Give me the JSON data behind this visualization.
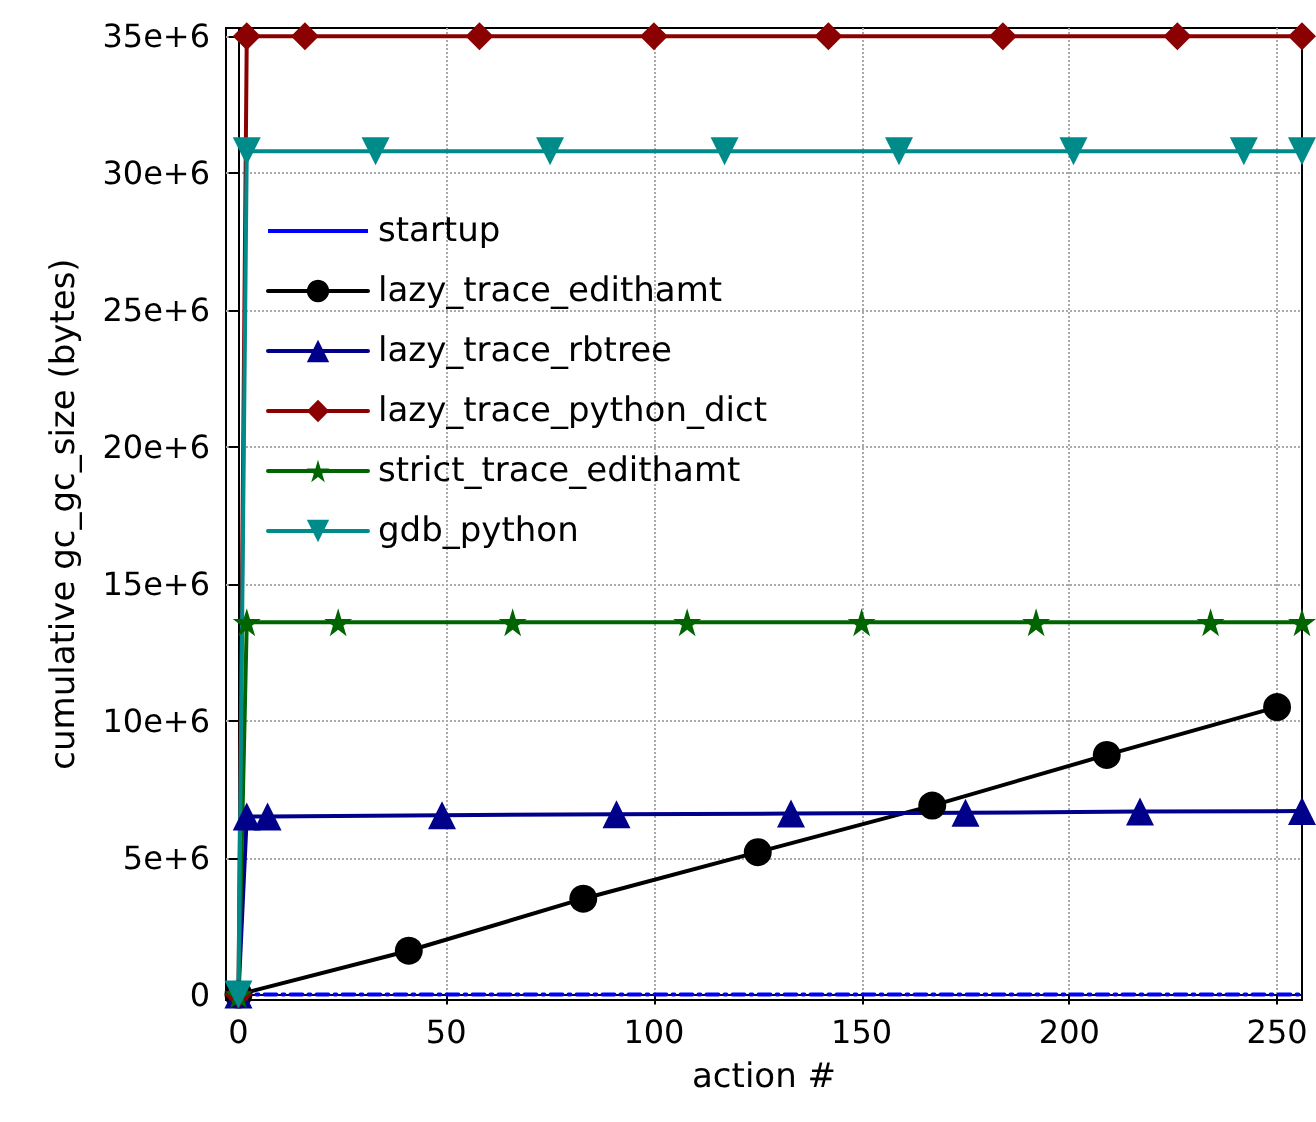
{
  "chart_data": {
    "type": "line",
    "xlabel": "action #",
    "ylabel": "cumulative gc_gc_size (bytes)",
    "xlim": [
      -3,
      256
    ],
    "ylim": [
      -200000,
      35300000
    ],
    "xticks": [
      0,
      50,
      100,
      150,
      200,
      250
    ],
    "yticks": [
      {
        "value": 0,
        "label": "0"
      },
      {
        "value": 5000000,
        "label": "5e+6"
      },
      {
        "value": 10000000,
        "label": "10e+6"
      },
      {
        "value": 15000000,
        "label": "15e+6"
      },
      {
        "value": 20000000,
        "label": "20e+6"
      },
      {
        "value": 25000000,
        "label": "25e+6"
      },
      {
        "value": 30000000,
        "label": "30e+6"
      },
      {
        "value": 35000000,
        "label": "35e+6"
      }
    ],
    "grid": true,
    "legend": "top left",
    "series": [
      {
        "name": "startup",
        "color": "#0000ff",
        "line_style": "dashed",
        "marker": "none",
        "x": [
          0,
          256
        ],
        "values": [
          0,
          0
        ]
      },
      {
        "name": "lazy_trace_edithamt",
        "color": "#000000",
        "marker": "circle",
        "x": [
          0,
          41,
          83,
          125,
          167,
          209,
          250
        ],
        "values": [
          0,
          1600000,
          3500000,
          5200000,
          6900000,
          8750000,
          10500000
        ]
      },
      {
        "name": "lazy_trace_rbtree",
        "color": "#00008b",
        "marker": "triangle",
        "x": [
          0,
          2,
          7,
          49,
          91,
          133,
          175,
          217,
          256
        ],
        "values": [
          0,
          6500000,
          6500000,
          6550000,
          6580000,
          6610000,
          6640000,
          6680000,
          6700000
        ]
      },
      {
        "name": "lazy_trace_python_dict",
        "color": "#8b0000",
        "marker": "diamond",
        "x": [
          0,
          2,
          16,
          58,
          100,
          142,
          184,
          226,
          256
        ],
        "values": [
          0,
          35000000,
          35000000,
          35000000,
          35000000,
          35000000,
          35000000,
          35000000,
          35000000
        ]
      },
      {
        "name": "strict_trace_edithamt",
        "color": "#006400",
        "marker": "star",
        "x": [
          0,
          2,
          24,
          66,
          108,
          150,
          192,
          234,
          256
        ],
        "values": [
          0,
          13600000,
          13600000,
          13600000,
          13600000,
          13600000,
          13600000,
          13600000,
          13600000
        ]
      },
      {
        "name": "gdb_python",
        "color": "#008b8b",
        "marker": "triangle-down",
        "x": [
          0,
          2,
          33,
          75,
          117,
          159,
          201,
          242,
          256
        ],
        "values": [
          0,
          30800000,
          30800000,
          30800000,
          30800000,
          30800000,
          30800000,
          30800000,
          30800000
        ]
      }
    ]
  }
}
